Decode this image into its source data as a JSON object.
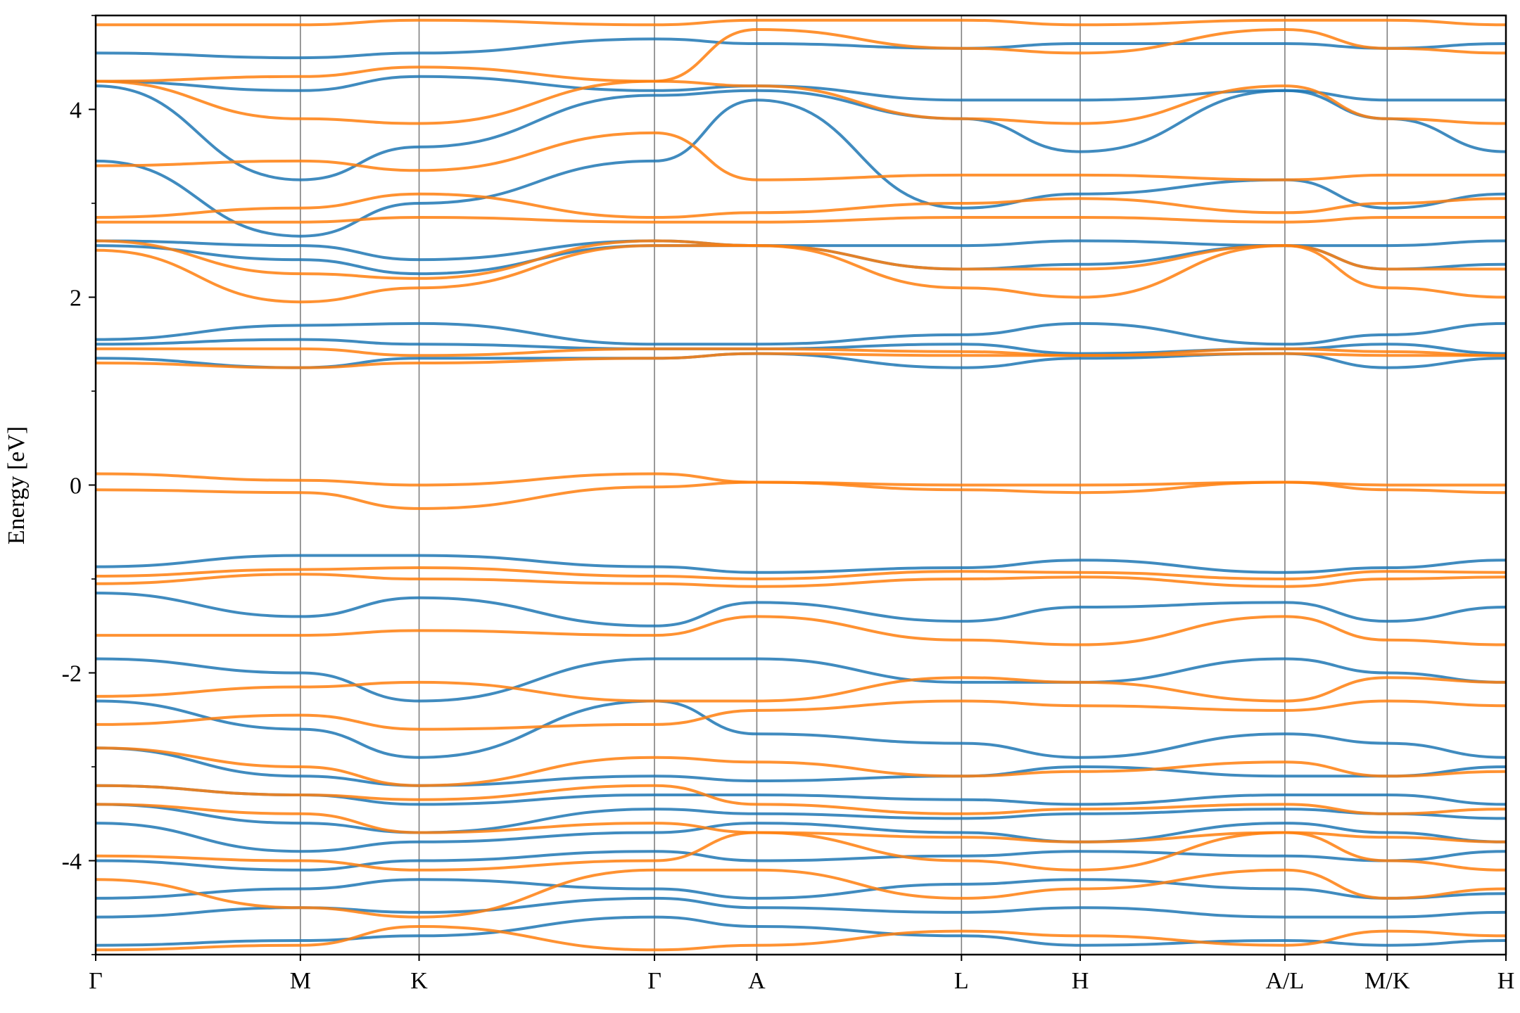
{
  "chart_data": {
    "type": "line",
    "title": "",
    "xlabel": "",
    "ylabel": "Energy [eV]",
    "ylim": [
      -5,
      5
    ],
    "yticks": [
      -4,
      -2,
      0,
      2,
      4
    ],
    "ytick_labels": [
      "-4",
      "-2",
      "0",
      "2",
      "4"
    ],
    "yticks_minor": [
      -5,
      -3,
      -1,
      1,
      3,
      5
    ],
    "kpath_labels": [
      "Γ",
      "M",
      "K",
      "Γ",
      "A",
      "L",
      "H",
      "A/L",
      "M/K",
      "H"
    ],
    "kpath_positions": [
      0,
      1.0,
      1.58,
      2.73,
      3.23,
      4.23,
      4.81,
      5.81,
      6.31,
      6.89
    ],
    "grid": "vertical lines at high-symmetry points",
    "legend": "none",
    "colors": {
      "spin_up": "#1f77b4",
      "spin_down": "#ff7f0e",
      "kline": "#808080"
    },
    "series": [
      {
        "color": "#1f77b4",
        "bands": [
          [
            -4.9,
            -4.85,
            -4.8,
            -4.6,
            -4.7,
            -4.8,
            -4.9,
            -4.85,
            -4.9,
            -4.85
          ],
          [
            -4.6,
            -4.5,
            -4.55,
            -4.4,
            -4.5,
            -4.55,
            -4.5,
            -4.6,
            -4.6,
            -4.55
          ],
          [
            -4.4,
            -4.3,
            -4.2,
            -4.3,
            -4.4,
            -4.25,
            -4.2,
            -4.3,
            -4.4,
            -4.35
          ],
          [
            -4.0,
            -4.1,
            -4.0,
            -3.9,
            -4.0,
            -3.95,
            -3.9,
            -3.95,
            -4.0,
            -3.9
          ],
          [
            -3.6,
            -3.9,
            -3.8,
            -3.7,
            -3.6,
            -3.7,
            -3.8,
            -3.6,
            -3.7,
            -3.8
          ],
          [
            -3.4,
            -3.6,
            -3.7,
            -3.45,
            -3.5,
            -3.55,
            -3.5,
            -3.45,
            -3.5,
            -3.55
          ],
          [
            -3.2,
            -3.3,
            -3.4,
            -3.3,
            -3.3,
            -3.35,
            -3.4,
            -3.3,
            -3.3,
            -3.4
          ],
          [
            -2.8,
            -3.1,
            -3.2,
            -3.1,
            -3.15,
            -3.1,
            -3.0,
            -3.1,
            -3.1,
            -3.0
          ],
          [
            -2.3,
            -2.6,
            -2.9,
            -2.3,
            -2.65,
            -2.75,
            -2.9,
            -2.65,
            -2.75,
            -2.9
          ],
          [
            -1.85,
            -2.0,
            -2.3,
            -1.85,
            -1.85,
            -2.1,
            -2.1,
            -1.85,
            -2.0,
            -2.1
          ],
          [
            -1.15,
            -1.4,
            -1.2,
            -1.5,
            -1.25,
            -1.45,
            -1.3,
            -1.25,
            -1.45,
            -1.3
          ],
          [
            -0.87,
            -0.75,
            -0.75,
            -0.87,
            -0.93,
            -0.88,
            -0.8,
            -0.93,
            -0.88,
            -0.8
          ],
          [
            1.35,
            1.25,
            1.35,
            1.35,
            1.4,
            1.25,
            1.35,
            1.4,
            1.25,
            1.35
          ],
          [
            1.5,
            1.55,
            1.5,
            1.45,
            1.45,
            1.5,
            1.4,
            1.45,
            1.5,
            1.4
          ],
          [
            1.55,
            1.7,
            1.72,
            1.5,
            1.5,
            1.6,
            1.72,
            1.5,
            1.6,
            1.72
          ],
          [
            2.55,
            2.4,
            2.25,
            2.55,
            2.55,
            2.3,
            2.35,
            2.55,
            2.3,
            2.35
          ],
          [
            2.6,
            2.55,
            2.4,
            2.6,
            2.55,
            2.55,
            2.6,
            2.55,
            2.55,
            2.6
          ],
          [
            3.45,
            2.65,
            3.0,
            3.45,
            4.1,
            2.95,
            3.1,
            3.25,
            2.95,
            3.1
          ],
          [
            4.25,
            3.25,
            3.6,
            4.15,
            4.2,
            3.9,
            3.55,
            4.2,
            3.9,
            3.55
          ],
          [
            4.3,
            4.2,
            4.35,
            4.2,
            4.25,
            4.1,
            4.1,
            4.2,
            4.1,
            4.1
          ],
          [
            4.6,
            4.55,
            4.6,
            4.75,
            4.7,
            4.65,
            4.7,
            4.7,
            4.65,
            4.7
          ]
        ]
      },
      {
        "color": "#ff7f0e",
        "bands": [
          [
            -4.95,
            -4.9,
            -4.7,
            -4.95,
            -4.9,
            -4.75,
            -4.8,
            -4.9,
            -4.75,
            -4.8
          ],
          [
            -4.2,
            -4.5,
            -4.6,
            -4.1,
            -4.1,
            -4.4,
            -4.3,
            -4.1,
            -4.4,
            -4.3
          ],
          [
            -3.95,
            -4.0,
            -4.1,
            -4.0,
            -3.7,
            -4.0,
            -4.1,
            -3.7,
            -4.0,
            -4.1
          ],
          [
            -3.4,
            -3.5,
            -3.7,
            -3.6,
            -3.7,
            -3.75,
            -3.8,
            -3.7,
            -3.75,
            -3.8
          ],
          [
            -3.2,
            -3.3,
            -3.35,
            -3.2,
            -3.4,
            -3.5,
            -3.45,
            -3.4,
            -3.5,
            -3.45
          ],
          [
            -2.8,
            -3.0,
            -3.2,
            -2.9,
            -2.95,
            -3.1,
            -3.05,
            -2.95,
            -3.1,
            -3.05
          ],
          [
            -2.55,
            -2.45,
            -2.6,
            -2.55,
            -2.4,
            -2.3,
            -2.35,
            -2.4,
            -2.3,
            -2.35
          ],
          [
            -2.25,
            -2.15,
            -2.1,
            -2.3,
            -2.3,
            -2.05,
            -2.1,
            -2.3,
            -2.05,
            -2.1
          ],
          [
            -1.6,
            -1.6,
            -1.55,
            -1.6,
            -1.4,
            -1.65,
            -1.7,
            -1.4,
            -1.65,
            -1.7
          ],
          [
            -1.05,
            -0.95,
            -1.0,
            -1.05,
            -1.08,
            -1.0,
            -0.98,
            -1.08,
            -1.0,
            -0.98
          ],
          [
            -0.97,
            -0.9,
            -0.88,
            -0.97,
            -1.0,
            -0.92,
            -0.93,
            -1.0,
            -0.92,
            -0.93
          ],
          [
            -0.05,
            -0.08,
            -0.25,
            -0.02,
            0.03,
            -0.05,
            -0.08,
            0.03,
            -0.05,
            -0.08
          ],
          [
            0.12,
            0.05,
            0.0,
            0.12,
            0.03,
            0.0,
            0.0,
            0.03,
            0.0,
            0.0
          ],
          [
            1.3,
            1.25,
            1.3,
            1.35,
            1.4,
            1.38,
            1.38,
            1.4,
            1.38,
            1.38
          ],
          [
            1.45,
            1.45,
            1.38,
            1.45,
            1.45,
            1.42,
            1.38,
            1.45,
            1.42,
            1.38
          ],
          [
            2.5,
            1.95,
            2.1,
            2.55,
            2.55,
            2.1,
            2.0,
            2.55,
            2.1,
            2.0
          ],
          [
            2.6,
            2.25,
            2.2,
            2.6,
            2.55,
            2.3,
            2.3,
            2.55,
            2.3,
            2.3
          ],
          [
            2.8,
            2.8,
            2.85,
            2.8,
            2.8,
            2.85,
            2.85,
            2.8,
            2.85,
            2.85
          ],
          [
            2.85,
            2.95,
            3.1,
            2.85,
            2.9,
            3.0,
            3.05,
            2.9,
            3.0,
            3.05
          ],
          [
            3.4,
            3.45,
            3.35,
            3.75,
            3.25,
            3.3,
            3.3,
            3.25,
            3.3,
            3.3
          ],
          [
            4.3,
            3.9,
            3.85,
            4.3,
            4.25,
            3.9,
            3.85,
            4.25,
            3.9,
            3.85
          ],
          [
            4.3,
            4.35,
            4.45,
            4.3,
            4.85,
            4.65,
            4.6,
            4.85,
            4.65,
            4.6
          ],
          [
            4.9,
            4.9,
            4.95,
            4.9,
            4.95,
            4.95,
            4.9,
            4.95,
            4.95,
            4.9
          ]
        ]
      }
    ]
  }
}
